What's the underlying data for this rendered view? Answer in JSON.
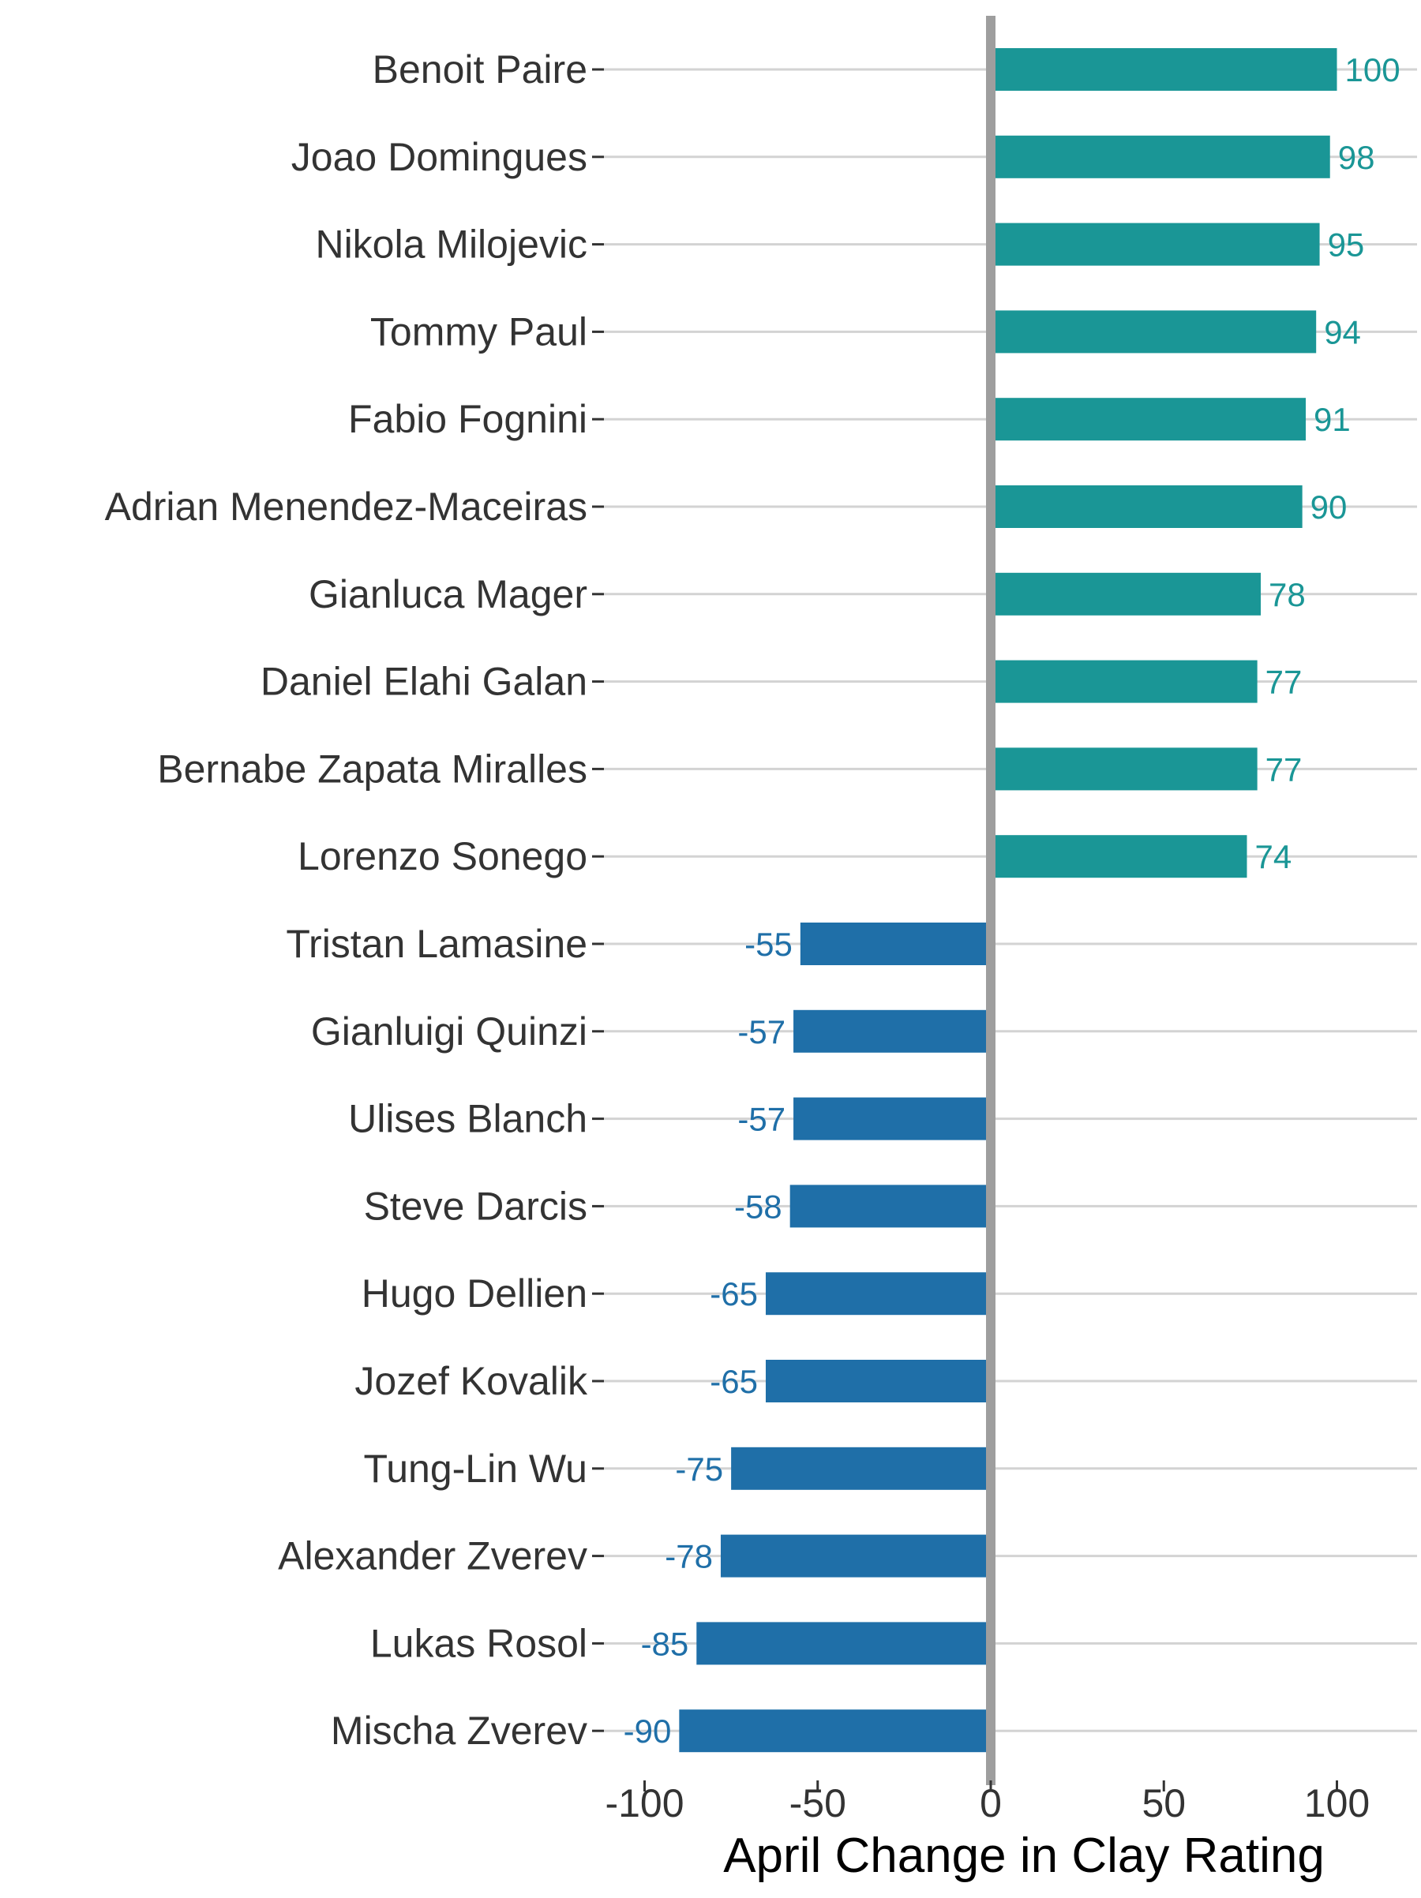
{
  "chart_data": {
    "type": "bar",
    "orientation": "horizontal",
    "title": "",
    "xlabel": "April Change in Clay Rating",
    "ylabel": "",
    "xlim": [
      -110,
      120
    ],
    "xticks": [
      -100,
      -50,
      0,
      50,
      100
    ],
    "xtick_labels": [
      "-100",
      "-50",
      "0",
      "50",
      "100"
    ],
    "grid": "horizontal gridlines at each category",
    "legend": "none",
    "colors": {
      "positive": "#1a9696",
      "negative": "#1f6fa8",
      "zero_line": "#9e9e9e",
      "grid": "#d3d3d3",
      "text": "#333333"
    },
    "categories": [
      "Benoit Paire",
      "Joao Domingues",
      "Nikola Milojevic",
      "Tommy Paul",
      "Fabio Fognini",
      "Adrian Menendez-Maceiras",
      "Gianluca Mager",
      "Daniel Elahi Galan",
      "Bernabe Zapata Miralles",
      "Lorenzo Sonego",
      "Tristan Lamasine",
      "Gianluigi Quinzi",
      "Ulises Blanch",
      "Steve Darcis",
      "Hugo Dellien",
      "Jozef Kovalik",
      "Tung-Lin Wu",
      "Alexander Zverev",
      "Lukas Rosol",
      "Mischa Zverev"
    ],
    "values": [
      100,
      98,
      95,
      94,
      91,
      90,
      78,
      77,
      77,
      74,
      -55,
      -57,
      -57,
      -58,
      -65,
      -65,
      -75,
      -78,
      -85,
      -90
    ],
    "value_labels": [
      "100",
      "98",
      "95",
      "94",
      "91",
      "90",
      "78",
      "77",
      "77",
      "74",
      "-55",
      "-57",
      "-57",
      "-58",
      "-65",
      "-65",
      "-75",
      "-78",
      "-85",
      "-90"
    ]
  }
}
